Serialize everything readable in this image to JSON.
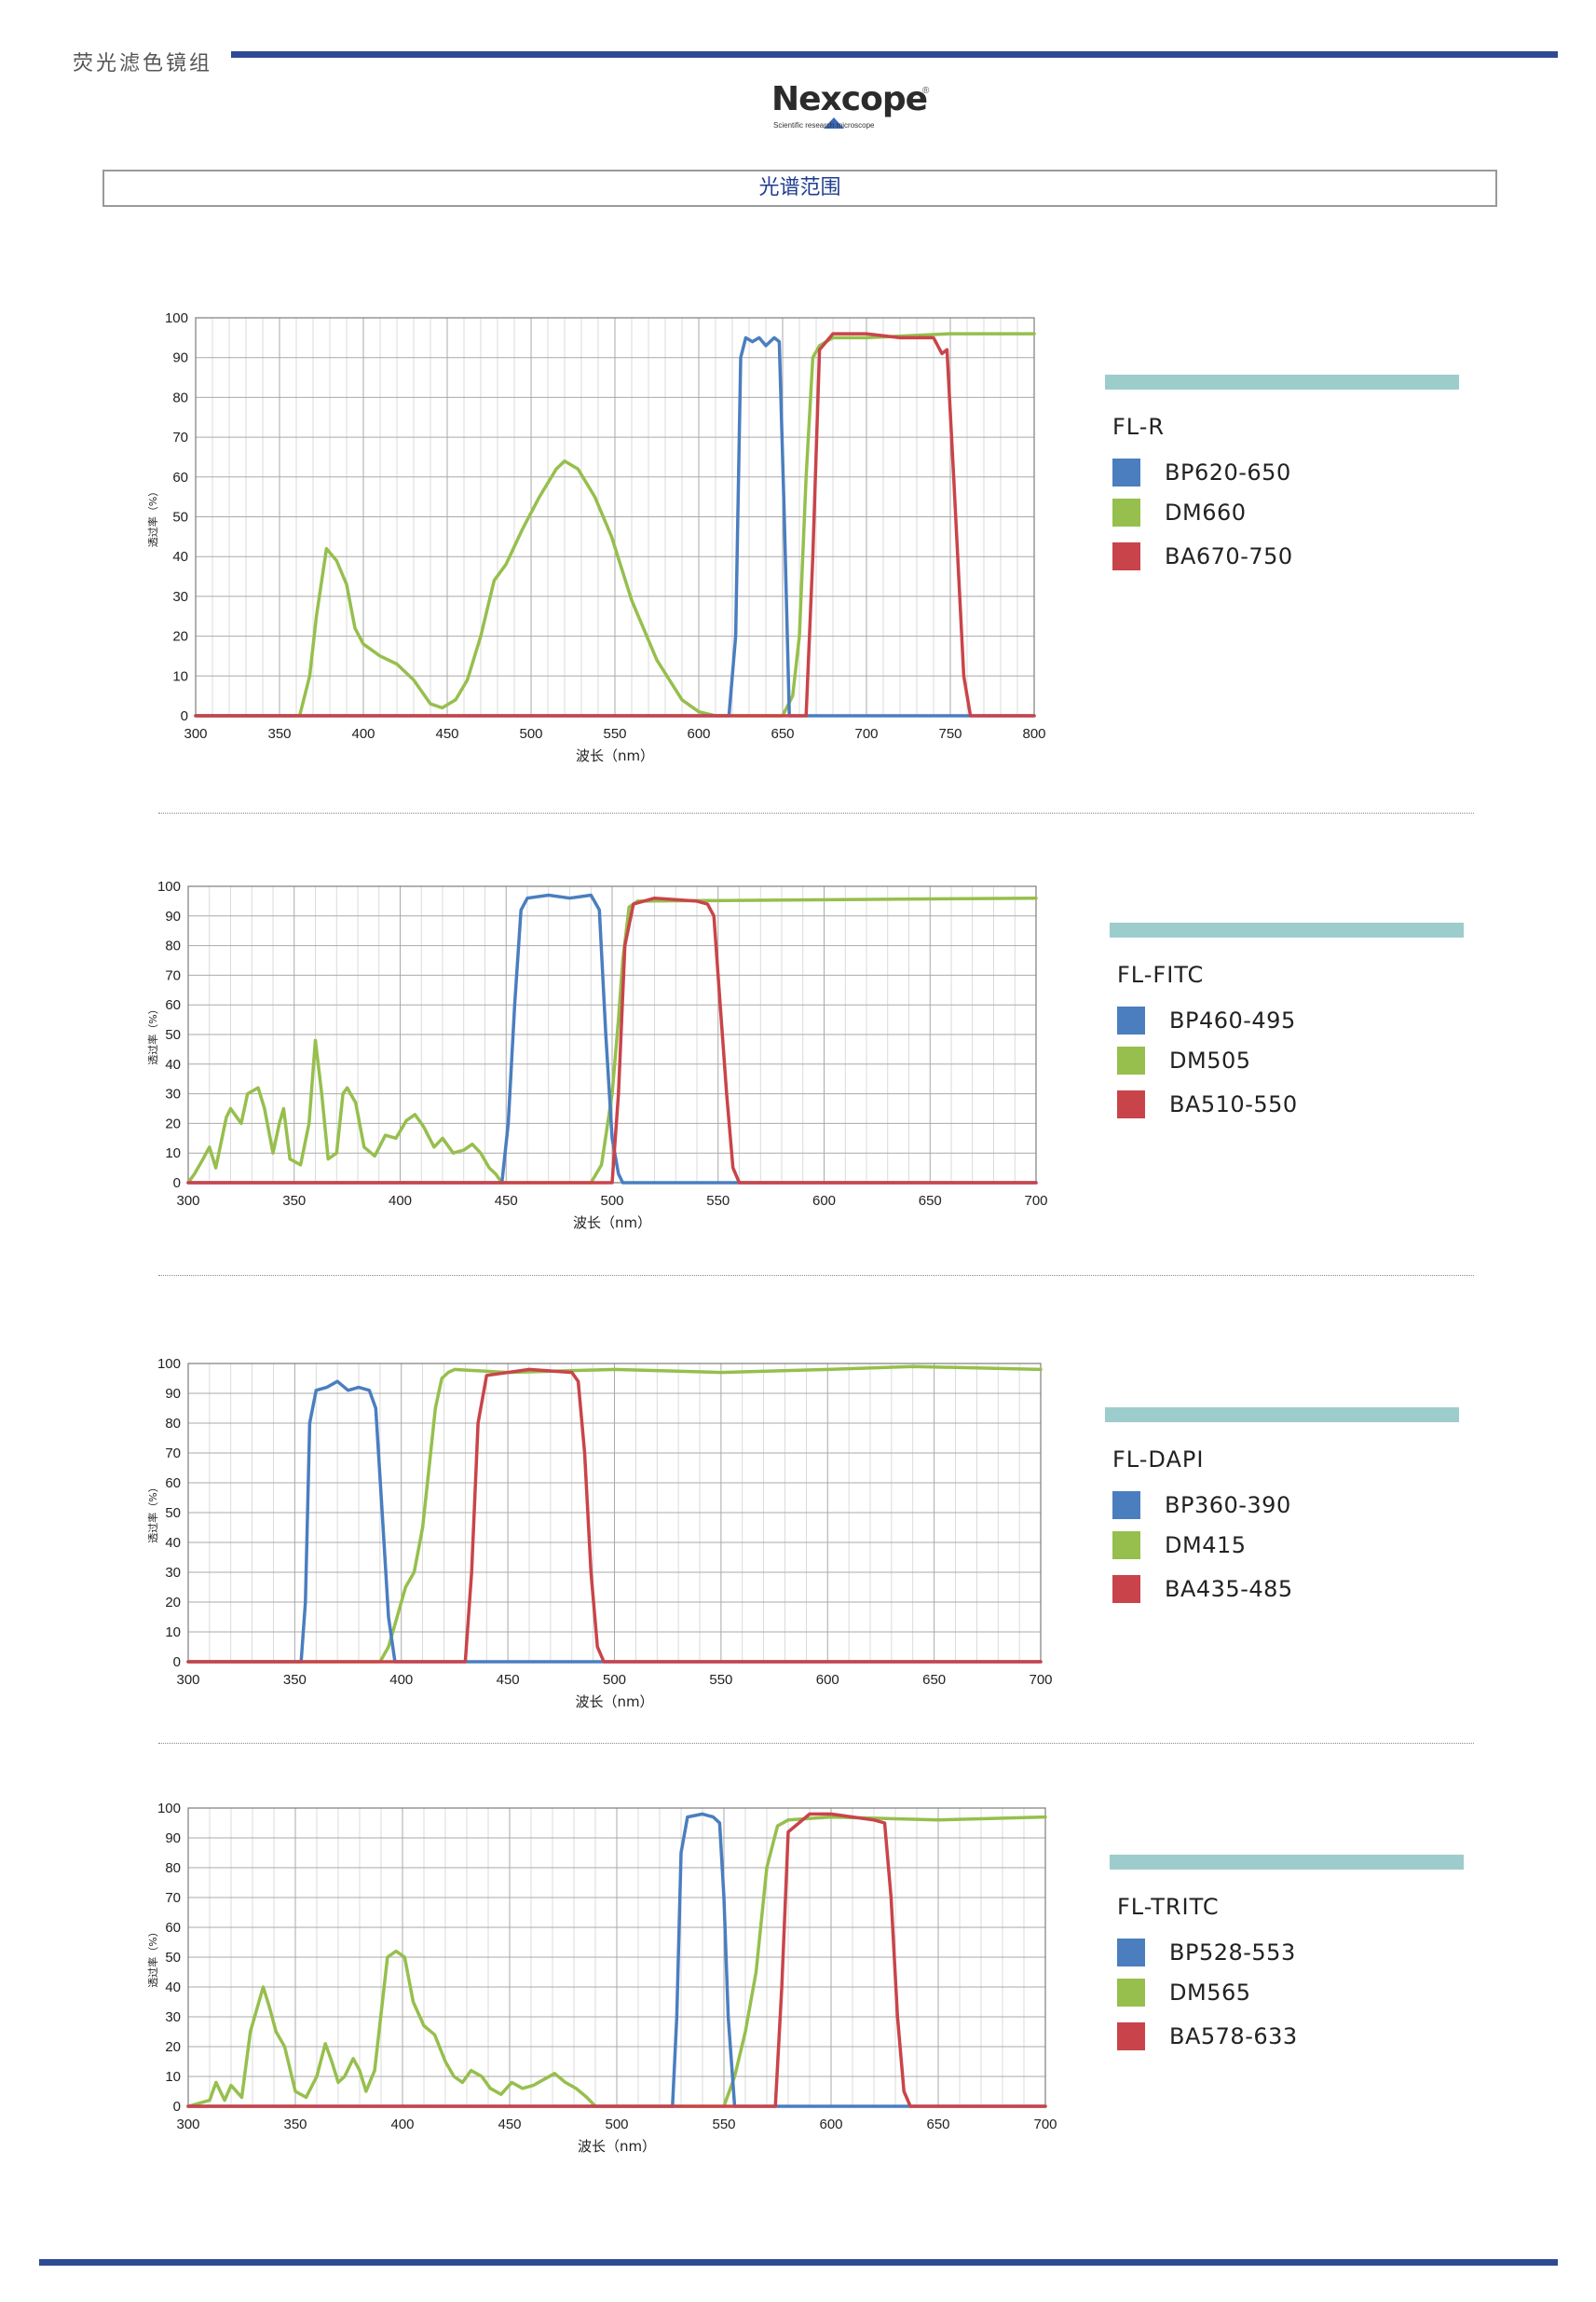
{
  "header": {
    "category": "荧光滤色镜组",
    "section_title": "光谱范围"
  },
  "logo": {
    "word": "Nexcope",
    "reg": "®",
    "sub": "Scientific          research microscope"
  },
  "colors": {
    "blue": "#4a7ebf",
    "green": "#96bf4d",
    "red": "#c9444a",
    "legend_bar": "#9ccdcc",
    "brand": "#2e4a94"
  },
  "chart_data": [
    {
      "type": "line",
      "title": "",
      "xlabel": "波长（nm）",
      "ylabel": "透过率（%）",
      "xlim": [
        300,
        800
      ],
      "ylim": [
        0,
        100
      ],
      "grid": true,
      "legend_position": "right",
      "x_ticks": [
        300,
        350,
        400,
        450,
        500,
        550,
        600,
        650,
        700,
        750,
        800
      ],
      "y_ticks": [
        0,
        10,
        20,
        30,
        40,
        50,
        60,
        70,
        80,
        90,
        100
      ],
      "legend_name": "FL-R",
      "series": [
        {
          "name": "BP620-650",
          "color": "blue",
          "x": [
            300,
            618,
            622,
            625,
            628,
            632,
            636,
            640,
            645,
            648,
            651,
            654,
            700,
            800
          ],
          "y": [
            0,
            0,
            20,
            90,
            95,
            94,
            95,
            93,
            95,
            94,
            50,
            0,
            0,
            0
          ]
        },
        {
          "name": "DM660",
          "color": "green",
          "x": [
            300,
            362,
            368,
            372,
            378,
            384,
            390,
            395,
            400,
            410,
            420,
            430,
            440,
            447,
            455,
            462,
            470,
            478,
            485,
            495,
            505,
            515,
            520,
            528,
            538,
            548,
            560,
            575,
            590,
            600,
            610,
            650,
            656,
            660,
            664,
            668,
            672,
            680,
            700,
            750,
            800
          ],
          "y": [
            0,
            0,
            10,
            25,
            42,
            39,
            33,
            22,
            18,
            15,
            13,
            9,
            3,
            2,
            4,
            9,
            20,
            34,
            38,
            47,
            55,
            62,
            64,
            62,
            55,
            45,
            29,
            14,
            4,
            1,
            0,
            0,
            5,
            20,
            60,
            90,
            93,
            95,
            95,
            96,
            96
          ]
        },
        {
          "name": "BA670-750",
          "color": "red",
          "x": [
            300,
            664,
            668,
            672,
            680,
            700,
            720,
            740,
            745,
            748,
            752,
            755,
            758,
            762,
            766,
            800
          ],
          "y": [
            0,
            0,
            40,
            92,
            96,
            96,
            95,
            95,
            91,
            92,
            60,
            35,
            10,
            0,
            0,
            0
          ]
        }
      ]
    },
    {
      "type": "line",
      "title": "",
      "xlabel": "波长（nm）",
      "ylabel": "透过率（%）",
      "xlim": [
        300,
        700
      ],
      "ylim": [
        0,
        100
      ],
      "grid": true,
      "legend_position": "right",
      "x_ticks": [
        300,
        350,
        400,
        450,
        500,
        550,
        600,
        650,
        700
      ],
      "y_ticks": [
        0,
        10,
        20,
        30,
        40,
        50,
        60,
        70,
        80,
        90,
        100
      ],
      "legend_name": "FL-FITC",
      "series": [
        {
          "name": "BP460-495",
          "color": "blue",
          "x": [
            300,
            448,
            451,
            454,
            457,
            460,
            470,
            480,
            490,
            494,
            497,
            500,
            503,
            505,
            700
          ],
          "y": [
            0,
            0,
            20,
            60,
            92,
            96,
            97,
            96,
            97,
            92,
            50,
            15,
            3,
            0,
            0
          ]
        },
        {
          "name": "DM505",
          "color": "green",
          "x": [
            300,
            303,
            307,
            310,
            313,
            318,
            320,
            325,
            328,
            333,
            336,
            340,
            343,
            345,
            348,
            353,
            357,
            360,
            363,
            366,
            370,
            373,
            375,
            379,
            383,
            388,
            393,
            398,
            403,
            407,
            411,
            416,
            420,
            425,
            430,
            434,
            438,
            442,
            445,
            448,
            480,
            490,
            495,
            500,
            503,
            505,
            508,
            512,
            700
          ],
          "y": [
            0,
            3,
            8,
            12,
            5,
            22,
            25,
            20,
            30,
            32,
            25,
            10,
            20,
            25,
            8,
            6,
            20,
            48,
            30,
            8,
            10,
            30,
            32,
            27,
            12,
            9,
            16,
            15,
            21,
            23,
            19,
            12,
            15,
            10,
            11,
            13,
            10,
            5,
            3,
            0,
            0,
            0,
            6,
            30,
            55,
            75,
            93,
            95,
            96
          ]
        },
        {
          "name": "BA510-550",
          "color": "red",
          "x": [
            300,
            500,
            503,
            506,
            510,
            520,
            540,
            545,
            548,
            551,
            554,
            557,
            560,
            700
          ],
          "y": [
            0,
            0,
            30,
            80,
            94,
            96,
            95,
            94,
            90,
            60,
            30,
            5,
            0,
            0
          ]
        }
      ]
    },
    {
      "type": "line",
      "title": "",
      "xlabel": "波长（nm）",
      "ylabel": "透过率（%）",
      "xlim": [
        300,
        700
      ],
      "ylim": [
        0,
        100
      ],
      "grid": true,
      "legend_position": "right",
      "x_ticks": [
        300,
        350,
        400,
        450,
        500,
        550,
        600,
        650,
        700
      ],
      "y_ticks": [
        0,
        10,
        20,
        30,
        40,
        50,
        60,
        70,
        80,
        90,
        100
      ],
      "legend_name": "FL-DAPI",
      "series": [
        {
          "name": "BP360-390",
          "color": "blue",
          "x": [
            300,
            353,
            355,
            357,
            360,
            365,
            370,
            375,
            380,
            385,
            388,
            391,
            394,
            397,
            700
          ],
          "y": [
            0,
            0,
            20,
            80,
            91,
            92,
            94,
            91,
            92,
            91,
            85,
            50,
            15,
            0,
            0
          ]
        },
        {
          "name": "DM415",
          "color": "green",
          "x": [
            300,
            390,
            394,
            398,
            402,
            406,
            410,
            413,
            416,
            419,
            422,
            425,
            450,
            500,
            550,
            600,
            640,
            700
          ],
          "y": [
            0,
            0,
            5,
            15,
            25,
            30,
            45,
            65,
            85,
            95,
            97,
            98,
            97,
            98,
            97,
            98,
            99,
            98
          ]
        },
        {
          "name": "BA435-485",
          "color": "red",
          "x": [
            300,
            430,
            433,
            436,
            440,
            460,
            480,
            483,
            486,
            489,
            492,
            495,
            700
          ],
          "y": [
            0,
            0,
            30,
            80,
            96,
            98,
            97,
            94,
            70,
            30,
            5,
            0,
            0
          ]
        }
      ]
    },
    {
      "type": "line",
      "title": "",
      "xlabel": "波长（nm）",
      "ylabel": "透过率（%）",
      "xlim": [
        300,
        700
      ],
      "ylim": [
        0,
        100
      ],
      "grid": true,
      "legend_position": "right",
      "x_ticks": [
        300,
        350,
        400,
        450,
        500,
        550,
        600,
        650,
        700
      ],
      "y_ticks": [
        0,
        10,
        20,
        30,
        40,
        50,
        60,
        70,
        80,
        90,
        100
      ],
      "legend_name": "FL-TRITC",
      "series": [
        {
          "name": "BP528-553",
          "color": "blue",
          "x": [
            300,
            526,
            528,
            530,
            533,
            540,
            545,
            548,
            550,
            552,
            555,
            700
          ],
          "y": [
            0,
            0,
            30,
            85,
            97,
            98,
            97,
            95,
            70,
            30,
            0,
            0
          ]
        },
        {
          "name": "DM565",
          "color": "green",
          "x": [
            300,
            310,
            313,
            317,
            320,
            325,
            329,
            335,
            338,
            341,
            345,
            350,
            355,
            360,
            364,
            367,
            370,
            373,
            377,
            380,
            383,
            387,
            393,
            397,
            401,
            405,
            410,
            415,
            420,
            424,
            428,
            432,
            437,
            441,
            446,
            451,
            456,
            461,
            466,
            471,
            476,
            481,
            486,
            490,
            550,
            555,
            560,
            565,
            570,
            575,
            580,
            600,
            650,
            700
          ],
          "y": [
            0,
            2,
            8,
            2,
            7,
            3,
            25,
            40,
            33,
            25,
            20,
            5,
            3,
            10,
            21,
            15,
            8,
            10,
            16,
            12,
            5,
            12,
            50,
            52,
            50,
            35,
            27,
            24,
            15,
            10,
            8,
            12,
            10,
            6,
            4,
            8,
            6,
            7,
            9,
            11,
            8,
            6,
            3,
            0,
            0,
            10,
            25,
            45,
            80,
            94,
            96,
            97,
            96,
            97
          ]
        },
        {
          "name": "BA578-633",
          "color": "red",
          "x": [
            300,
            574,
            577,
            580,
            585,
            590,
            600,
            610,
            620,
            625,
            628,
            631,
            634,
            637,
            700
          ],
          "y": [
            0,
            0,
            40,
            92,
            95,
            98,
            98,
            97,
            96,
            95,
            70,
            30,
            5,
            0,
            0
          ]
        }
      ]
    }
  ]
}
